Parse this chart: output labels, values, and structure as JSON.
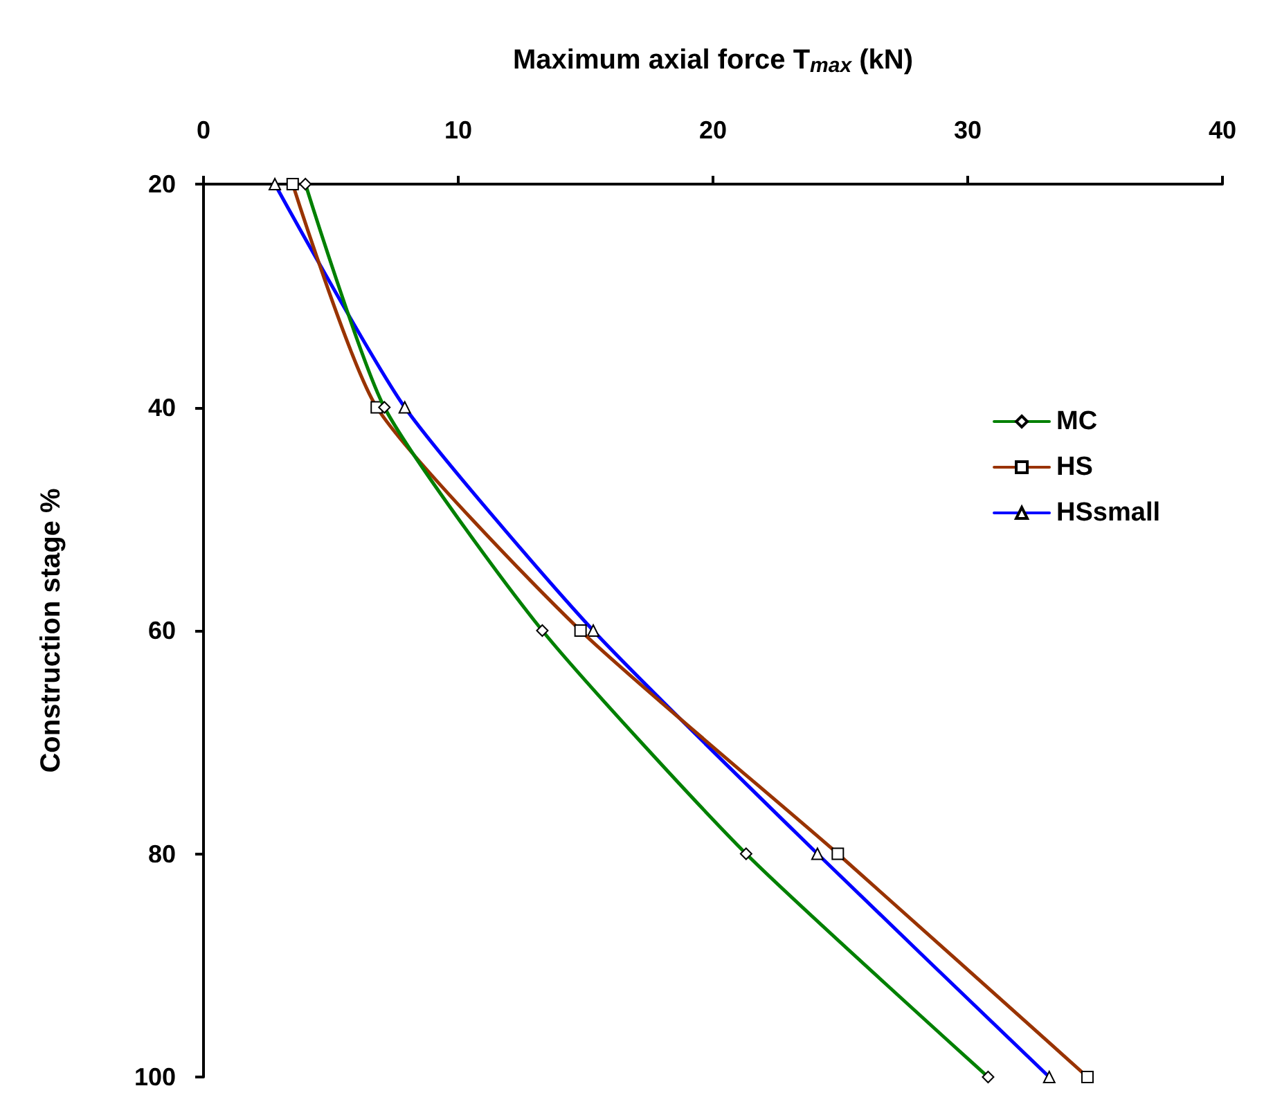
{
  "chart_data": {
    "type": "line",
    "xlabel": "Maximum axial force T$_{max}$ (kN)",
    "ylabel": "Construction stage %",
    "xlim": [
      0,
      40
    ],
    "xticks": [
      0,
      10,
      20,
      30,
      40
    ],
    "ylim": [
      100,
      20
    ],
    "yticks": [
      20,
      40,
      60,
      80,
      100
    ],
    "grid": false,
    "legend": "right",
    "line_style": "solid",
    "series": [
      {
        "name": "MC",
        "color": "#008000",
        "marker": "diamond",
        "x": [
          4.0,
          7.1,
          13.3,
          21.3,
          30.8
        ],
        "values": [
          20,
          40,
          60,
          80,
          100
        ]
      },
      {
        "name": "HS",
        "color": "#993300",
        "marker": "square",
        "x": [
          3.5,
          6.8,
          14.8,
          24.9,
          34.7
        ],
        "values": [
          20,
          40,
          60,
          80,
          100
        ]
      },
      {
        "name": "HSsmall",
        "color": "#0000ff",
        "marker": "triangle",
        "x": [
          2.8,
          7.9,
          15.3,
          24.1,
          33.2
        ],
        "values": [
          20,
          40,
          60,
          80,
          100
        ]
      }
    ]
  }
}
